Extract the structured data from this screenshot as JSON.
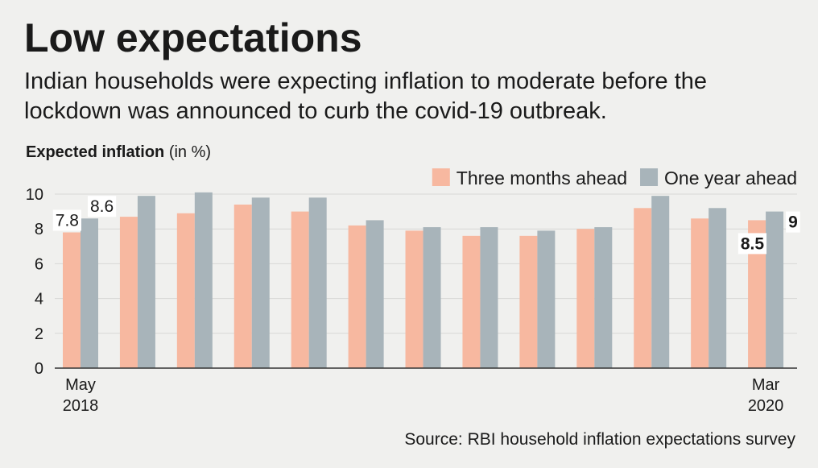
{
  "chart_data": {
    "type": "bar",
    "title": "Low expectations",
    "subtitle": [
      "Indian households were expecting inflation to moderate before the",
      "lockdown was announced to curb the covid-19 outbreak."
    ],
    "y_label": "Expected inflation",
    "y_label_unit": "(in %)",
    "source": "Source: RBI household inflation expectations survey",
    "categories": [
      "May 2018",
      null,
      null,
      null,
      null,
      null,
      null,
      null,
      null,
      null,
      null,
      null,
      "Mar 2020"
    ],
    "series": [
      {
        "name": "Three months ahead",
        "color": "#f7b8a0",
        "values": [
          7.8,
          8.7,
          8.9,
          9.4,
          9.0,
          8.2,
          7.9,
          7.6,
          7.6,
          8.0,
          9.2,
          8.6,
          8.5
        ],
        "value_labels": [
          "7.8",
          null,
          null,
          null,
          null,
          null,
          null,
          null,
          null,
          null,
          null,
          null,
          "8.5"
        ]
      },
      {
        "name": "One year ahead",
        "color": "#a8b4ba",
        "values": [
          8.6,
          9.9,
          10.1,
          9.8,
          9.8,
          8.5,
          8.1,
          8.1,
          7.9,
          8.1,
          9.9,
          9.2,
          9
        ],
        "value_labels": [
          "8.6",
          null,
          null,
          null,
          null,
          null,
          null,
          null,
          null,
          null,
          null,
          null,
          "9"
        ]
      }
    ],
    "ylim": [
      0,
      10.5
    ],
    "yticks": [
      0,
      2,
      4,
      6,
      8,
      10
    ],
    "grid": true,
    "legend": "top-right"
  }
}
